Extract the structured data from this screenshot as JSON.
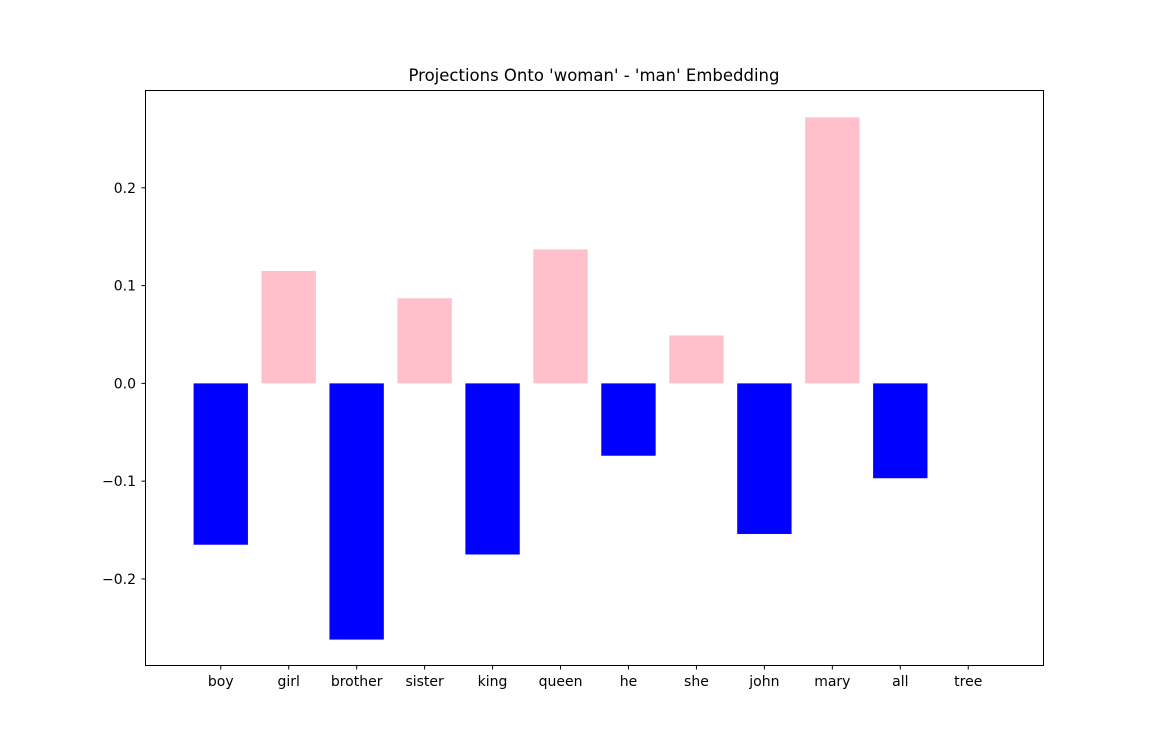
{
  "chart_data": {
    "type": "bar",
    "title": "Projections Onto 'woman' - 'man' Embedding",
    "xlabel": "",
    "ylabel": "",
    "categories": [
      "boy",
      "girl",
      "brother",
      "sister",
      "king",
      "queen",
      "he",
      "she",
      "john",
      "mary",
      "all",
      "tree"
    ],
    "values": [
      -0.165,
      0.115,
      -0.262,
      0.087,
      -0.175,
      0.137,
      -0.074,
      0.049,
      -0.154,
      0.272,
      -0.097,
      0.0
    ],
    "ylim": [
      -0.288,
      0.299
    ],
    "yticks": [
      -0.2,
      -0.1,
      0.0,
      0.1,
      0.2
    ],
    "ytick_labels": [
      "−0.2",
      "−0.1",
      "0.0",
      "0.1",
      "0.2"
    ],
    "grid": false,
    "colors": {
      "positive": "#ffc0cb",
      "negative": "#0000ff",
      "axis": "#000000",
      "background": "#ffffff"
    }
  }
}
